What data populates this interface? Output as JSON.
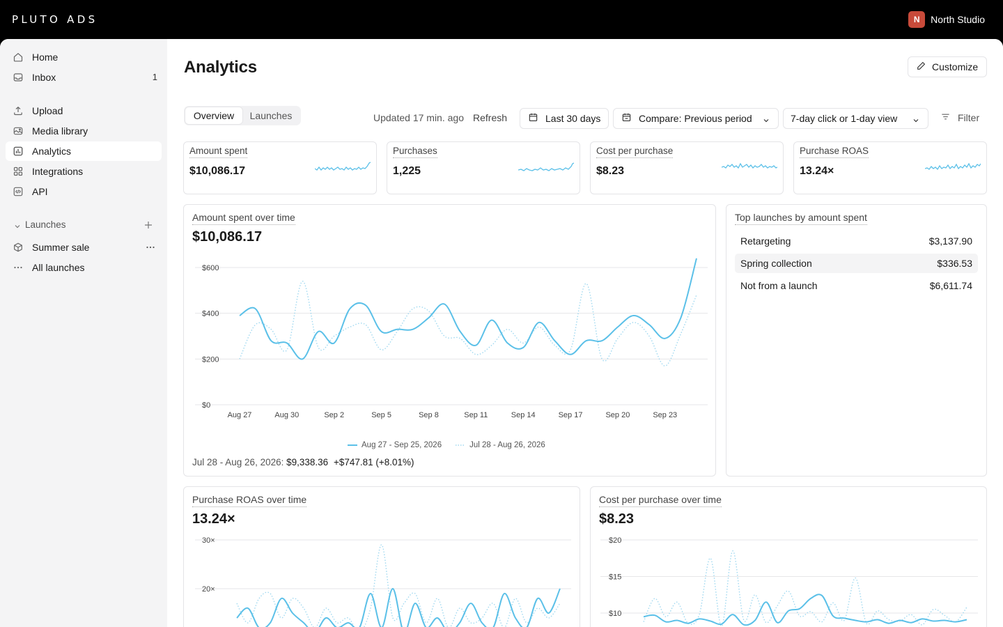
{
  "app": {
    "brand": "PLUTO ADS",
    "org_initial": "N",
    "org_name": "North Studio",
    "accent": "#5bc0e8",
    "org_color": "#c84a3a"
  },
  "sidebar": {
    "items": [
      {
        "label": "Home",
        "icon": "home-icon"
      },
      {
        "label": "Inbox",
        "icon": "inbox-icon",
        "badge": "1"
      },
      {
        "label": "Upload",
        "icon": "upload-icon"
      },
      {
        "label": "Media library",
        "icon": "media-library-icon"
      },
      {
        "label": "Analytics",
        "icon": "analytics-icon",
        "active": true
      },
      {
        "label": "Integrations",
        "icon": "integrations-icon"
      },
      {
        "label": "API",
        "icon": "api-icon"
      }
    ],
    "launches_header": "Launches",
    "launches": [
      {
        "label": "Summer sale",
        "icon": "box-icon"
      },
      {
        "label": "All launches",
        "icon": "more-icon"
      }
    ]
  },
  "page": {
    "title": "Analytics",
    "customize": "Customize",
    "tabs": [
      "Overview",
      "Launches"
    ],
    "active_tab": "Overview",
    "updated": "Updated 17 min. ago",
    "refresh": "Refresh",
    "date_range": "Last 30 days",
    "compare": "Compare: Previous period",
    "attribution": "7-day click or 1-day view",
    "filter": "Filter"
  },
  "kpis": [
    {
      "label": "Amount spent",
      "value": "$10,086.17"
    },
    {
      "label": "Purchases",
      "value": "1,225"
    },
    {
      "label": "Cost per purchase",
      "value": "$8.23"
    },
    {
      "label": "Purchase ROAS",
      "value": "13.24×"
    }
  ],
  "spent_chart": {
    "title": "Amount spent over time",
    "value": "$10,086.17",
    "legend_current": "Aug 27 - Sep 25, 2026",
    "legend_previous": "Jul 28 - Aug 26, 2026",
    "compare_label": "Jul 28 - Aug 26, 2026:",
    "compare_value": "$9,338.36",
    "compare_delta": "+$747.81 (+8.01%)"
  },
  "top_launches": {
    "title": "Top launches by amount spent",
    "rows": [
      {
        "name": "Retargeting",
        "value": "$3,137.90"
      },
      {
        "name": "Spring collection",
        "value": "$336.53"
      },
      {
        "name": "Not from a launch",
        "value": "$6,611.74"
      }
    ]
  },
  "roas_chart": {
    "title": "Purchase ROAS over time",
    "value": "13.24×"
  },
  "cpp_chart": {
    "title": "Cost per purchase over time",
    "value": "$8.23"
  },
  "chart_data": [
    {
      "type": "line",
      "title": "Amount spent over time",
      "x": [
        "Aug 27",
        "Aug 28",
        "Aug 29",
        "Aug 30",
        "Aug 31",
        "Sep 1",
        "Sep 2",
        "Sep 3",
        "Sep 4",
        "Sep 5",
        "Sep 6",
        "Sep 7",
        "Sep 8",
        "Sep 9",
        "Sep 10",
        "Sep 11",
        "Sep 12",
        "Sep 13",
        "Sep 14",
        "Sep 15",
        "Sep 16",
        "Sep 17",
        "Sep 18",
        "Sep 19",
        "Sep 20",
        "Sep 21",
        "Sep 22",
        "Sep 23",
        "Sep 24",
        "Sep 25"
      ],
      "x_ticks": [
        "Aug 27",
        "Aug 30",
        "Sep 2",
        "Sep 5",
        "Sep 8",
        "Sep 11",
        "Sep 14",
        "Sep 17",
        "Sep 20",
        "Sep 23"
      ],
      "y_ticks": [
        "$0",
        "$200",
        "$400",
        "$600"
      ],
      "ylim": [
        0,
        600
      ],
      "grid": true,
      "legend": "bottom",
      "series": [
        {
          "name": "Aug 27 - Sep 25, 2026",
          "style": "solid",
          "color": "#5bc0e8",
          "values": [
            390,
            420,
            280,
            270,
            200,
            320,
            270,
            420,
            435,
            320,
            330,
            330,
            380,
            440,
            320,
            260,
            370,
            270,
            250,
            360,
            280,
            220,
            280,
            280,
            340,
            390,
            350,
            290,
            380,
            640
          ]
        },
        {
          "name": "Jul 28 - Aug 26, 2026",
          "style": "dotted",
          "color": "#9fd8f0",
          "values": [
            200,
            350,
            330,
            240,
            540,
            250,
            300,
            340,
            350,
            240,
            320,
            420,
            410,
            300,
            290,
            220,
            260,
            330,
            270,
            340,
            260,
            240,
            530,
            200,
            290,
            360,
            300,
            170,
            310,
            480
          ]
        }
      ]
    },
    {
      "type": "line",
      "title": "Purchase ROAS over time",
      "y_ticks": [
        "20×",
        "30×"
      ],
      "grid": true,
      "series": [
        {
          "name": "Aug 27 - Sep 25, 2026",
          "style": "solid",
          "color": "#5bc0e8",
          "values": [
            14,
            16,
            12,
            13,
            18,
            15,
            13,
            11,
            14,
            12,
            13,
            12,
            19,
            12,
            20,
            11,
            17,
            12,
            14,
            11,
            13,
            17,
            13,
            12,
            19,
            14,
            12,
            18,
            15,
            20
          ]
        },
        {
          "name": "Jul 28 - Aug 26, 2026",
          "style": "dotted",
          "color": "#9fd8f0",
          "values": [
            17,
            13,
            18,
            19,
            14,
            18,
            16,
            12,
            16,
            13,
            14,
            11,
            16,
            29,
            14,
            17,
            19,
            13,
            18,
            12,
            16,
            13,
            14,
            17,
            12,
            18,
            13,
            16,
            14,
            17
          ]
        }
      ]
    },
    {
      "type": "line",
      "title": "Cost per purchase over time",
      "y_ticks": [
        "$10",
        "$15",
        "$20"
      ],
      "grid": true,
      "series": [
        {
          "name": "Aug 27 - Sep 25, 2026",
          "style": "solid",
          "color": "#5bc0e8",
          "values": [
            9.5,
            9.7,
            8.8,
            9.0,
            8.6,
            9.2,
            8.9,
            8.5,
            9.8,
            8.4,
            9.0,
            11.5,
            8.7,
            10.3,
            10.6,
            12.0,
            12.4,
            9.6,
            9.3,
            9.0,
            8.8,
            9.1,
            8.6,
            9.0,
            8.7,
            9.2,
            8.9,
            9.0,
            8.8,
            9.1
          ]
        },
        {
          "name": "Jul 28 - Aug 26, 2026",
          "style": "dotted",
          "color": "#9fd8f0",
          "values": [
            8.8,
            12.0,
            9.5,
            11.5,
            8.6,
            9.8,
            17.5,
            8.2,
            18.5,
            9.0,
            12.5,
            8.7,
            11.0,
            13.0,
            9.6,
            10.2,
            8.8,
            11.4,
            9.0,
            14.8,
            8.6,
            10.3,
            9.1,
            8.9,
            9.8,
            8.4,
            10.5,
            9.7,
            8.8,
            10.8
          ]
        }
      ]
    }
  ]
}
